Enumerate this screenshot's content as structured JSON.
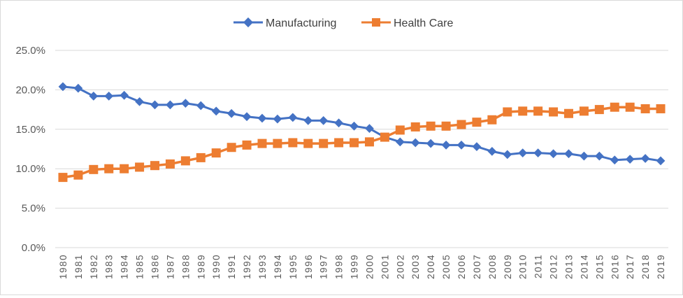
{
  "chart_data": {
    "type": "line",
    "title": "",
    "xlabel": "",
    "ylabel": "",
    "ylim": [
      0,
      25
    ],
    "y_ticks": [
      "0.0%",
      "5.0%",
      "10.0%",
      "15.0%",
      "20.0%",
      "25.0%"
    ],
    "y_tick_values": [
      0,
      5,
      10,
      15,
      20,
      25
    ],
    "grid": true,
    "legend_position": "top",
    "categories": [
      "1980",
      "1981",
      "1982",
      "1983",
      "1984",
      "1985",
      "1986",
      "1987",
      "1988",
      "1989",
      "1990",
      "1991",
      "1992",
      "1993",
      "1994",
      "1995",
      "1996",
      "1997",
      "1998",
      "1999",
      "2000",
      "2001",
      "2002",
      "2003",
      "2004",
      "2005",
      "2006",
      "2007",
      "2008",
      "2009",
      "2010",
      "2011",
      "2012",
      "2013",
      "2014",
      "2015",
      "2016",
      "2017",
      "2018",
      "2019"
    ],
    "series": [
      {
        "name": "Manufacturing",
        "color": "#4472C4",
        "marker": "diamond",
        "values": [
          20.4,
          20.2,
          19.2,
          19.2,
          19.3,
          18.5,
          18.1,
          18.1,
          18.3,
          18.0,
          17.3,
          17.0,
          16.6,
          16.4,
          16.3,
          16.5,
          16.1,
          16.1,
          15.8,
          15.4,
          15.1,
          14.0,
          13.4,
          13.3,
          13.2,
          13.0,
          13.0,
          12.8,
          12.2,
          11.8,
          12.0,
          12.0,
          11.9,
          11.9,
          11.6,
          11.6,
          11.1,
          11.2,
          11.3,
          11.0
        ]
      },
      {
        "name": "Health Care",
        "color": "#ED7D31",
        "marker": "square",
        "values": [
          8.9,
          9.2,
          9.9,
          10.0,
          10.0,
          10.2,
          10.4,
          10.6,
          11.0,
          11.4,
          12.0,
          12.7,
          13.0,
          13.2,
          13.2,
          13.3,
          13.2,
          13.2,
          13.3,
          13.3,
          13.4,
          14.0,
          14.9,
          15.3,
          15.4,
          15.4,
          15.6,
          15.9,
          16.2,
          17.2,
          17.3,
          17.3,
          17.2,
          17.0,
          17.3,
          17.5,
          17.8,
          17.8,
          17.6,
          17.6
        ]
      }
    ]
  }
}
